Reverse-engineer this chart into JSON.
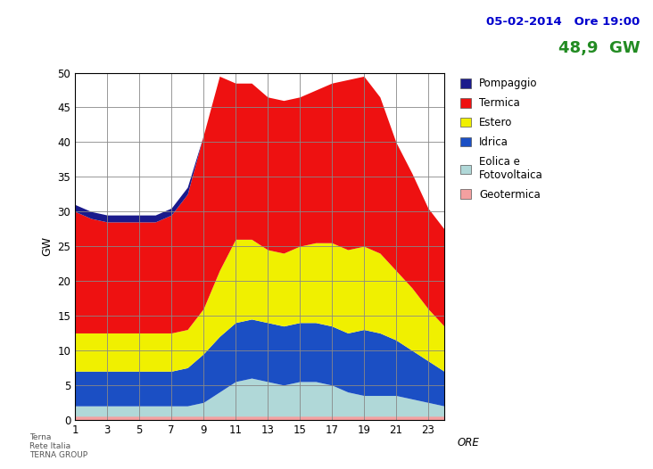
{
  "title_date": "05-02-2014   Ore 19:00",
  "title_value": "48,9  GW",
  "title_date_color": "#0000CD",
  "title_value_color": "#228B22",
  "ylabel": "GW",
  "xlabel": "ORE",
  "ylim": [
    0,
    50
  ],
  "hours": [
    1,
    2,
    3,
    4,
    5,
    6,
    7,
    8,
    9,
    10,
    11,
    12,
    13,
    14,
    15,
    16,
    17,
    18,
    19,
    20,
    21,
    22,
    23,
    24
  ],
  "geotermica": [
    0.5,
    0.5,
    0.5,
    0.5,
    0.5,
    0.5,
    0.5,
    0.5,
    0.5,
    0.5,
    0.5,
    0.5,
    0.5,
    0.5,
    0.5,
    0.5,
    0.5,
    0.5,
    0.5,
    0.5,
    0.5,
    0.5,
    0.5,
    0.5
  ],
  "eolica": [
    1.5,
    1.5,
    1.5,
    1.5,
    1.5,
    1.5,
    1.5,
    1.5,
    2.0,
    3.5,
    5.0,
    5.5,
    5.0,
    4.5,
    5.0,
    5.0,
    4.5,
    3.5,
    3.0,
    3.0,
    3.0,
    2.5,
    2.0,
    1.5
  ],
  "idrica": [
    5.0,
    5.0,
    5.0,
    5.0,
    5.0,
    5.0,
    5.0,
    5.5,
    7.0,
    8.0,
    8.5,
    8.5,
    8.5,
    8.5,
    8.5,
    8.5,
    8.5,
    8.5,
    9.5,
    9.0,
    8.0,
    7.0,
    6.0,
    5.0
  ],
  "estero": [
    5.5,
    5.5,
    5.5,
    5.5,
    5.5,
    5.5,
    5.5,
    5.5,
    6.5,
    9.5,
    12.0,
    11.5,
    10.5,
    10.5,
    11.0,
    11.5,
    12.0,
    12.0,
    12.0,
    11.5,
    10.0,
    9.0,
    7.5,
    6.5
  ],
  "termica": [
    17.5,
    16.5,
    16.0,
    16.0,
    16.0,
    16.0,
    17.0,
    19.5,
    25.0,
    28.0,
    22.5,
    22.5,
    22.0,
    22.0,
    21.5,
    22.0,
    23.0,
    24.5,
    24.5,
    22.5,
    18.5,
    16.5,
    14.5,
    14.0
  ],
  "pompaggio": [
    1.0,
    1.0,
    1.0,
    1.0,
    1.0,
    1.0,
    1.0,
    1.0,
    0.0,
    0.0,
    0.0,
    0.0,
    0.0,
    0.0,
    0.0,
    0.0,
    0.0,
    0.0,
    0.0,
    0.0,
    0.0,
    0.0,
    0.0,
    0.0
  ],
  "color_geotermica": "#F4A0A0",
  "color_eolica": "#B0D8D8",
  "color_idrica": "#1B4FC4",
  "color_estero": "#F0F000",
  "color_termica": "#EE1111",
  "color_pompaggio": "#1A1A8C",
  "bg_color": "#FFFFFF",
  "grid_color": "#888888",
  "xticks": [
    1,
    3,
    5,
    7,
    9,
    11,
    13,
    15,
    17,
    19,
    21,
    23
  ],
  "yticks": [
    0,
    5,
    10,
    15,
    20,
    25,
    30,
    35,
    40,
    45,
    50
  ]
}
